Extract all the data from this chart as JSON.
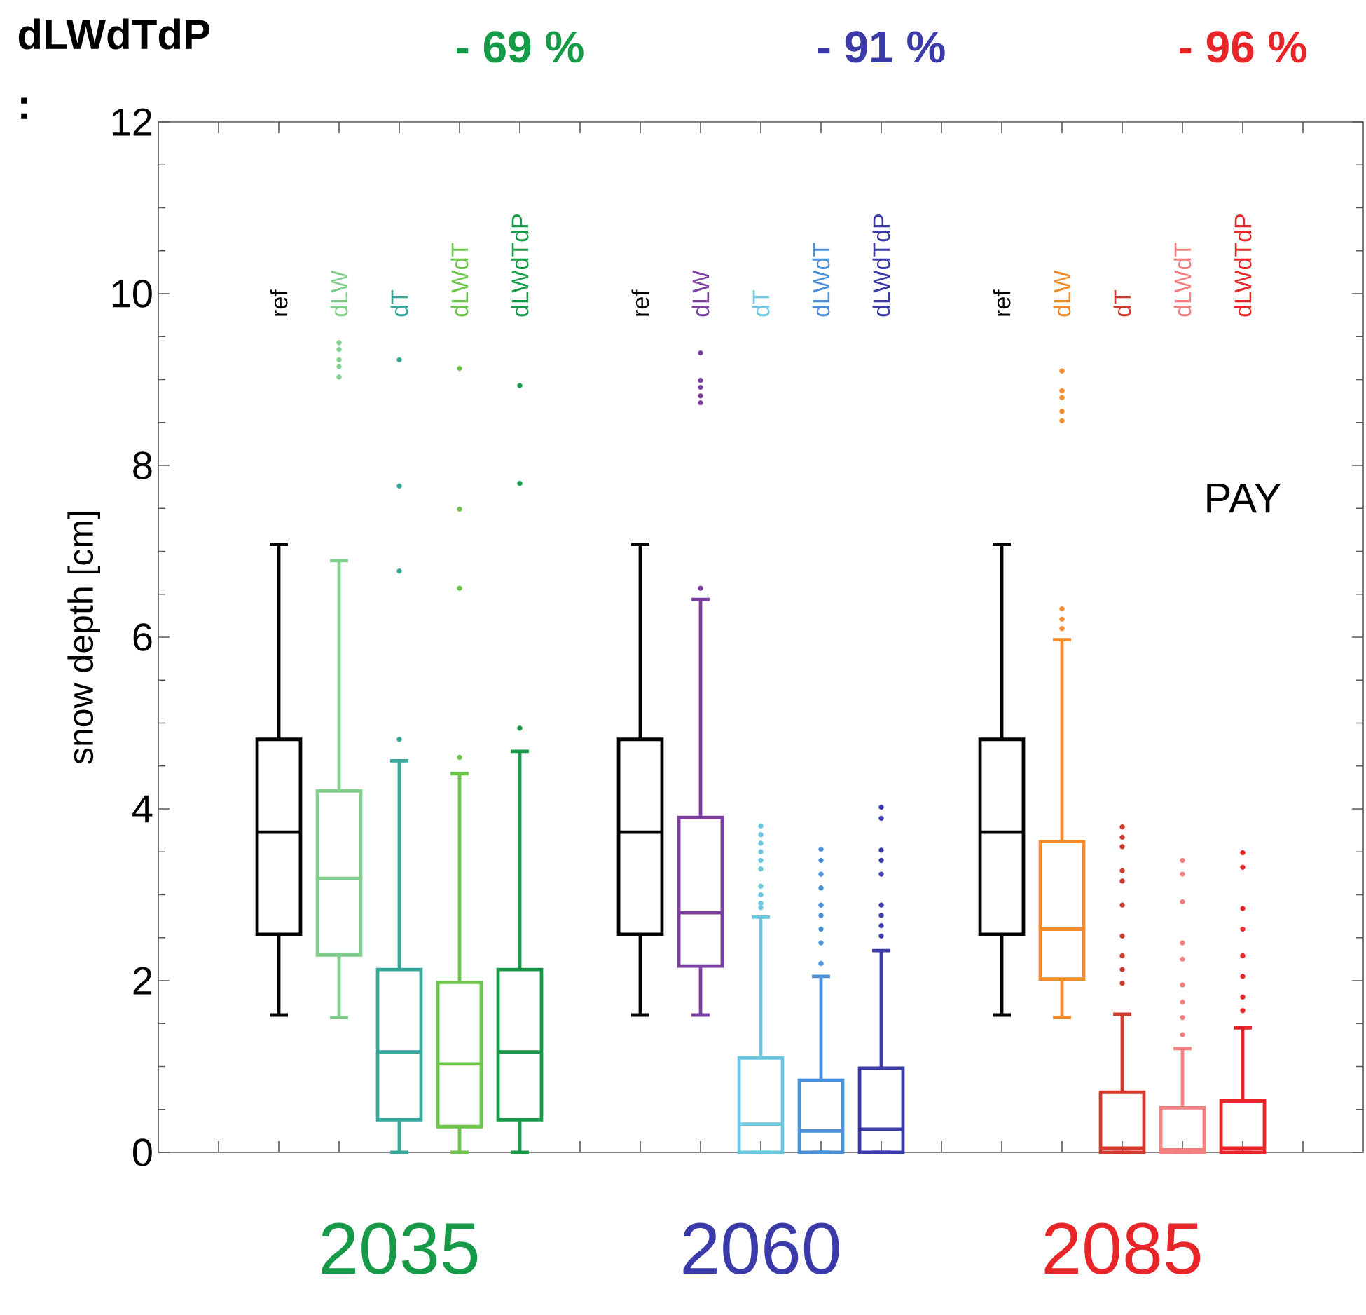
{
  "chart_data": {
    "type": "box",
    "title": "dLWdTdP :",
    "ylabel": "snow depth [cm]",
    "categories": [
      "ref",
      "dLW",
      "dT",
      "dLWdT",
      "dLWdTdP",
      null,
      "ref",
      "dLW",
      "dT",
      "dLWdT",
      "dLWdTdP",
      null,
      "ref",
      "dLW",
      "dT",
      "dLWdT",
      "dLWdTdP"
    ],
    "ylim": [
      0,
      12
    ],
    "yticks": [
      0,
      2,
      4,
      6,
      8,
      10,
      12
    ],
    "tick_labels": "y",
    "annotations": [
      "- 69 %",
      "- 91 %",
      "- 96 %",
      "PAY"
    ],
    "series": [
      {
        "name": "2035",
        "color": "#169a48",
        "colors": [
          "#000000",
          "#7fce8c",
          "#36a89a",
          "#6cc44a",
          "#169a48",
          null,
          null,
          null,
          null,
          null,
          null,
          null,
          null,
          null,
          null,
          null,
          null
        ],
        "boxes": [
          {
            "low": 1.6,
            "q1": 2.54,
            "median": 3.73,
            "q3": 4.81,
            "high": 7.08
          },
          {
            "low": 1.57,
            "q1": 2.3,
            "median": 3.19,
            "q3": 4.21,
            "high": 6.89,
            "outliers": [
              9.03,
              9.15,
              9.23,
              9.35,
              9.43
            ]
          },
          {
            "low": 0,
            "q1": 0.38,
            "median": 1.17,
            "q3": 2.13,
            "high": 4.56,
            "outliers": [
              4.81,
              6.77,
              7.76,
              9.23
            ]
          },
          {
            "low": 0,
            "q1": 0.3,
            "median": 1.03,
            "q3": 1.98,
            "high": 4.41,
            "outliers": [
              4.6,
              6.57,
              7.49,
              9.13
            ]
          },
          {
            "low": 0,
            "q1": 0.38,
            "median": 1.17,
            "q3": 2.13,
            "high": 4.67,
            "outliers": [
              4.94,
              7.79,
              8.93
            ]
          },
          null,
          null,
          null,
          null,
          null,
          null,
          null,
          null,
          null,
          null,
          null,
          null
        ]
      },
      {
        "name": "2060",
        "color": "#3a3aa8",
        "colors": [
          null,
          null,
          null,
          null,
          null,
          null,
          "#000000",
          "#7b3fa0",
          "#6cc8e0",
          "#4a90d9",
          "#3a3aa8",
          null,
          null,
          null,
          null,
          null,
          null
        ],
        "boxes": [
          null,
          null,
          null,
          null,
          null,
          null,
          {
            "low": 1.6,
            "q1": 2.54,
            "median": 3.73,
            "q3": 4.81,
            "high": 7.08
          },
          {
            "low": 1.6,
            "q1": 2.17,
            "median": 2.79,
            "q3": 3.9,
            "high": 6.44,
            "outliers": [
              6.57,
              8.73,
              8.81,
              8.91,
              8.99,
              9.31
            ]
          },
          {
            "low": 0,
            "q1": 0,
            "median": 0.33,
            "q3": 1.1,
            "high": 2.74,
            "outliers": [
              2.85,
              2.9,
              3.0,
              3.1,
              3.3,
              3.4,
              3.5,
              3.6,
              3.7,
              3.8
            ]
          },
          {
            "low": 0,
            "q1": 0,
            "median": 0.25,
            "q3": 0.84,
            "high": 2.05,
            "outliers": [
              2.2,
              2.44,
              2.6,
              2.76,
              2.88,
              3.08,
              3.24,
              3.4,
              3.53
            ]
          },
          {
            "low": 0,
            "q1": 0,
            "median": 0.27,
            "q3": 0.98,
            "high": 2.35,
            "outliers": [
              2.52,
              2.64,
              2.76,
              2.88,
              3.24,
              3.4,
              3.52,
              3.89,
              4.02
            ]
          },
          null,
          null,
          null,
          null,
          null,
          null
        ]
      },
      {
        "name": "2085",
        "color": "#e8262a",
        "colors": [
          null,
          null,
          null,
          null,
          null,
          null,
          null,
          null,
          null,
          null,
          null,
          null,
          "#000000",
          "#f08a2a",
          "#d0392b",
          "#f28080",
          "#e8262a"
        ],
        "boxes": [
          null,
          null,
          null,
          null,
          null,
          null,
          null,
          null,
          null,
          null,
          null,
          null,
          {
            "low": 1.6,
            "q1": 2.54,
            "median": 3.73,
            "q3": 4.81,
            "high": 7.08
          },
          {
            "low": 1.57,
            "q1": 2.02,
            "median": 2.6,
            "q3": 3.62,
            "high": 5.97,
            "outliers": [
              6.1,
              6.21,
              6.33,
              8.52,
              8.63,
              8.79,
              8.87,
              9.1
            ]
          },
          {
            "low": 0,
            "q1": 0,
            "median": 0.05,
            "q3": 0.7,
            "high": 1.61,
            "outliers": [
              1.97,
              2.13,
              2.29,
              2.52,
              2.88,
              3.16,
              3.28,
              3.56,
              3.67,
              3.79
            ]
          },
          {
            "low": 0,
            "q1": 0,
            "median": 0.03,
            "q3": 0.52,
            "high": 1.21,
            "outliers": [
              1.37,
              1.57,
              1.75,
              1.95,
              2.25,
              2.44,
              2.92,
              3.24,
              3.4
            ]
          },
          {
            "low": 0,
            "q1": 0,
            "median": 0.05,
            "q3": 0.6,
            "high": 1.45,
            "outliers": [
              1.65,
              1.81,
              2.05,
              2.29,
              2.6,
              2.84,
              3.32,
              3.49
            ]
          }
        ]
      }
    ]
  }
}
